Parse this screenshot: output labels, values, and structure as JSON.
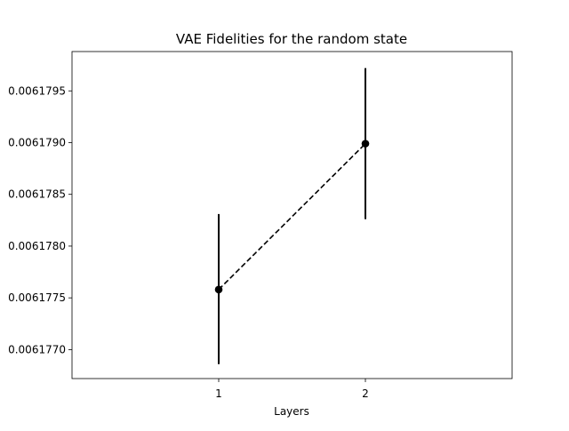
{
  "chart_data": {
    "type": "line",
    "title": "VAE Fidelities for the random state",
    "xlabel": "Layers",
    "ylabel": "",
    "x": [
      1,
      2
    ],
    "series": [
      {
        "values": [
          0.00617758,
          0.00617899
        ],
        "error_low": [
          0.00617686,
          0.00617826
        ],
        "error_high": [
          0.00617831,
          0.00617972
        ],
        "line_style": "dashed",
        "marker": "circle",
        "color": "#000000"
      }
    ],
    "xlim": [
      0,
      3
    ],
    "ylim": [
      0.00617672,
      0.00617988
    ],
    "xticks": [
      1,
      2
    ],
    "xtick_labels": [
      "1",
      "2"
    ],
    "yticks": [
      0.006177,
      0.0061775,
      0.006178,
      0.0061785,
      0.006179,
      0.0061795
    ],
    "ytick_labels": [
      "0.0061770",
      "0.0061775",
      "0.0061780",
      "0.0061785",
      "0.0061790",
      "0.0061795"
    ],
    "grid": false,
    "legend": false
  }
}
